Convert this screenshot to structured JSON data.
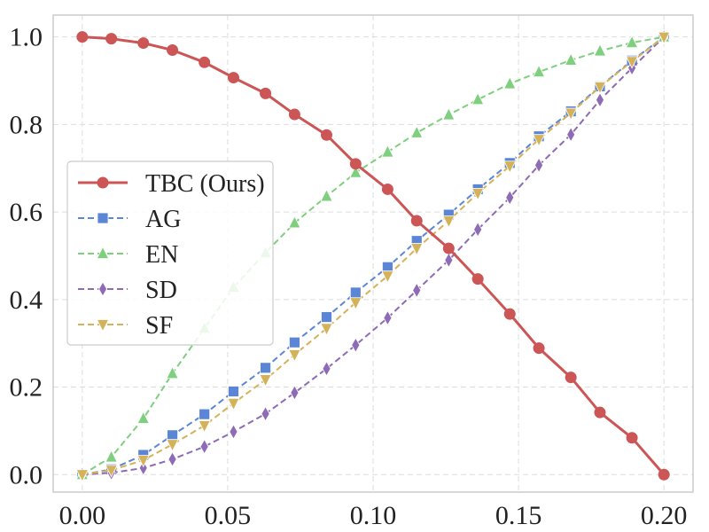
{
  "chart_data": {
    "type": "line",
    "title": "",
    "xlabel": "",
    "ylabel": "",
    "xlim": [
      -0.01,
      0.21
    ],
    "ylim": [
      -0.04,
      1.05
    ],
    "x_ticks": [
      0.0,
      0.05,
      0.1,
      0.15,
      0.2
    ],
    "x_tick_labels": [
      "0.00",
      "0.05",
      "0.10",
      "0.15",
      "0.20"
    ],
    "y_ticks": [
      0.0,
      0.2,
      0.4,
      0.6,
      0.8,
      1.0
    ],
    "y_tick_labels": [
      "0.0",
      "0.2",
      "0.4",
      "0.6",
      "0.8",
      "1.0"
    ],
    "grid": true,
    "legend_position": "center-left",
    "x": [
      0.0,
      0.01,
      0.021,
      0.031,
      0.042,
      0.052,
      0.063,
      0.073,
      0.084,
      0.094,
      0.105,
      0.115,
      0.126,
      0.136,
      0.147,
      0.157,
      0.168,
      0.178,
      0.189,
      0.2
    ],
    "series": [
      {
        "name": "TBC (Ours)",
        "color": "#cc5555",
        "marker": "circle",
        "linestyle": "solid",
        "values": [
          1.0,
          0.996,
          0.986,
          0.97,
          0.942,
          0.907,
          0.871,
          0.823,
          0.776,
          0.71,
          0.652,
          0.58,
          0.517,
          0.447,
          0.367,
          0.289,
          0.222,
          0.142,
          0.084,
          0.0
        ]
      },
      {
        "name": "AG",
        "color": "#5b86d6",
        "marker": "square",
        "linestyle": "dashed",
        "values": [
          0.0,
          0.012,
          0.045,
          0.09,
          0.138,
          0.19,
          0.244,
          0.302,
          0.36,
          0.416,
          0.474,
          0.534,
          0.594,
          0.652,
          0.712,
          0.773,
          0.83,
          0.887,
          0.946,
          1.0
        ]
      },
      {
        "name": "EN",
        "color": "#7ecf7e",
        "marker": "triangle-up",
        "linestyle": "dashed",
        "values": [
          0.0,
          0.04,
          0.128,
          0.231,
          0.334,
          0.428,
          0.507,
          0.575,
          0.636,
          0.69,
          0.737,
          0.781,
          0.822,
          0.857,
          0.893,
          0.92,
          0.947,
          0.968,
          0.987,
          1.0
        ]
      },
      {
        "name": "SD",
        "color": "#8e6bb5",
        "marker": "diamond",
        "linestyle": "dashed",
        "values": [
          0.0,
          0.004,
          0.015,
          0.035,
          0.064,
          0.098,
          0.139,
          0.187,
          0.242,
          0.296,
          0.358,
          0.421,
          0.49,
          0.56,
          0.633,
          0.707,
          0.777,
          0.856,
          0.929,
          1.0
        ]
      },
      {
        "name": "SF",
        "color": "#d4b25a",
        "marker": "triangle-down",
        "linestyle": "dashed",
        "values": [
          0.0,
          0.01,
          0.033,
          0.069,
          0.112,
          0.163,
          0.217,
          0.274,
          0.334,
          0.393,
          0.454,
          0.517,
          0.58,
          0.643,
          0.705,
          0.766,
          0.826,
          0.886,
          0.944,
          1.0
        ]
      }
    ]
  }
}
